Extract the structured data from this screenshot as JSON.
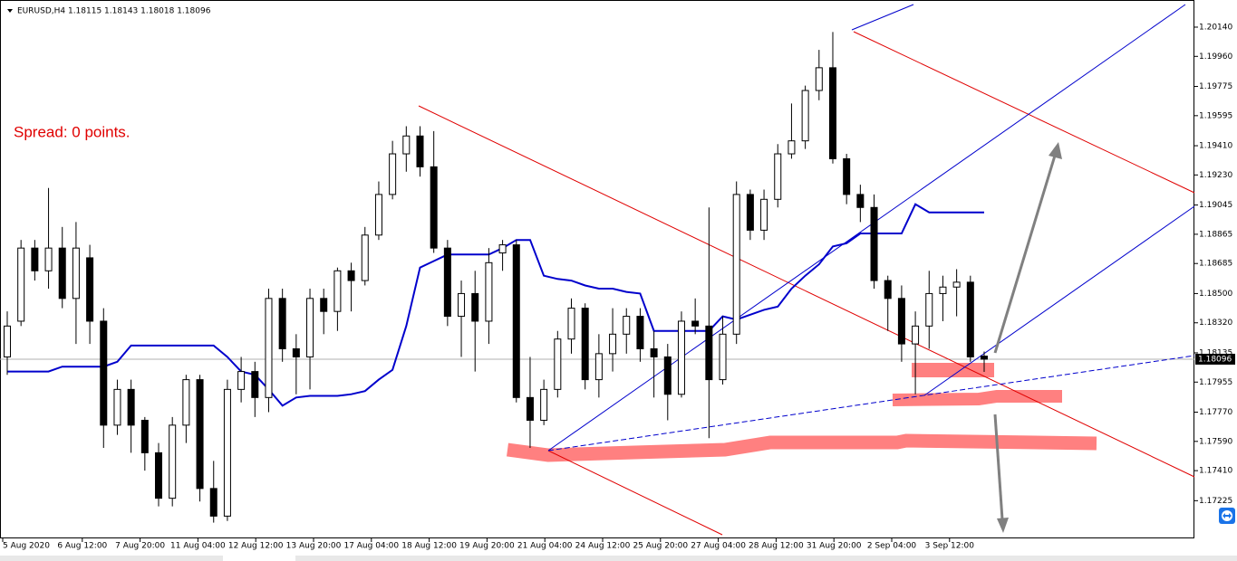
{
  "chart_data": {
    "type": "candlestick",
    "title": "EURUSD,H4  1.18115 1.18143 1.18018 1.18096",
    "annotation": "Spread: 0 points.",
    "ylim": [
      1.16993,
      1.20307
    ],
    "yticks": [
      {
        "value": 1.2014,
        "label": "1.20140"
      },
      {
        "value": 1.1996,
        "label": "1.19960"
      },
      1.19775,
      1.19595,
      {
        "value": 1.1941,
        "label": "1.19410"
      },
      {
        "value": 1.1923,
        "label": "1.19230"
      },
      1.19045,
      1.18865,
      1.18685,
      {
        "value": 1.185,
        "label": "1.18500"
      },
      {
        "value": 1.1832,
        "label": "1.18320"
      },
      1.18135,
      1.17955,
      {
        "value": 1.1777,
        "label": "1.17770"
      },
      {
        "value": 1.1759,
        "label": "1.17590"
      },
      {
        "value": 1.1741,
        "label": "1.17410"
      },
      1.17225
    ],
    "current_price": 1.18096,
    "x_labels": [
      "5 Aug 2020",
      "6 Aug 12:00",
      "7 Aug 20:00",
      "11 Aug 04:00",
      "12 Aug 12:00",
      "13 Aug 20:00",
      "17 Aug 04:00",
      "18 Aug 12:00",
      "19 Aug 20:00",
      "21 Aug 04:00",
      "24 Aug 12:00",
      "25 Aug 20:00",
      "27 Aug 04:00",
      "28 Aug 12:00",
      "31 Aug 20:00",
      "2 Sep 04:00",
      "3 Sep 12:00"
    ],
    "open": [
      1.1811,
      1.1833,
      1.1878,
      1.1864,
      1.1878,
      1.1847,
      1.1872,
      1.1833,
      1.1769,
      1.1791,
      1.1772,
      1.1752,
      1.1724,
      1.1769,
      1.1797,
      1.173,
      1.1713,
      1.1791,
      1.1802,
      1.1786,
      1.1847,
      1.1816,
      1.1811,
      1.1847,
      1.1839,
      1.1864,
      1.1858,
      1.1886,
      1.1911,
      1.1936,
      1.1947,
      1.1928,
      1.1878,
      1.1836,
      1.185,
      1.1833,
      1.1875,
      1.188,
      1.1786,
      1.1772,
      1.1791,
      1.1822,
      1.1841,
      1.1797,
      1.1813,
      1.1825,
      1.1836,
      1.1816,
      1.1811,
      1.1788,
      1.1833,
      1.183,
      1.1797,
      1.1825,
      1.1911,
      1.1889,
      1.1908,
      1.1936,
      1.1944,
      1.1975,
      1.1989,
      1.1933,
      1.1911,
      1.1903,
      1.1858,
      1.1847,
      1.1819,
      1.183,
      1.185,
      1.1854,
      1.1857,
      1.18115
    ],
    "high": [
      1.1839,
      1.1883,
      1.1883,
      1.1915,
      1.1891,
      1.1894,
      1.188,
      1.1841,
      1.1797,
      1.1797,
      1.1774,
      1.1758,
      1.1774,
      1.18,
      1.18,
      1.1747,
      1.1797,
      1.1811,
      1.1808,
      1.1853,
      1.1853,
      1.1825,
      1.1853,
      1.1853,
      1.1866,
      1.1869,
      1.1891,
      1.1919,
      1.1944,
      1.1953,
      1.1953,
      1.195,
      1.1883,
      1.1858,
      1.1864,
      1.1878,
      1.1883,
      1.1883,
      1.1811,
      1.1797,
      1.1827,
      1.1847,
      1.1844,
      1.1825,
      1.1841,
      1.1841,
      1.1841,
      1.1827,
      1.1819,
      1.1839,
      1.1847,
      1.1903,
      1.1836,
      1.1919,
      1.1914,
      1.1914,
      1.1942,
      1.1967,
      1.1978,
      1.2,
      1.2011,
      1.1936,
      1.1917,
      1.1911,
      1.1861,
      1.1855,
      1.1839,
      1.1864,
      1.1861,
      1.1865,
      1.1861,
      1.18143
    ],
    "low": [
      1.18,
      1.183,
      1.1858,
      1.1853,
      1.1841,
      1.1819,
      1.1819,
      1.1755,
      1.1763,
      1.1752,
      1.1741,
      1.1719,
      1.1719,
      1.1758,
      1.1722,
      1.1709,
      1.171,
      1.1783,
      1.1774,
      1.1777,
      1.1808,
      1.1788,
      1.1791,
      1.1825,
      1.1827,
      1.1839,
      1.1855,
      1.1883,
      1.1908,
      1.1925,
      1.1922,
      1.1875,
      1.183,
      1.1811,
      1.1802,
      1.1819,
      1.1864,
      1.1783,
      1.1755,
      1.1769,
      1.1786,
      1.1813,
      1.1791,
      1.1786,
      1.1802,
      1.1813,
      1.1808,
      1.1786,
      1.1772,
      1.1786,
      1.1825,
      1.1761,
      1.1794,
      1.1819,
      1.1883,
      1.1883,
      1.1903,
      1.1933,
      1.1939,
      1.1969,
      1.193,
      1.1905,
      1.1894,
      1.1853,
      1.1827,
      1.1808,
      1.1788,
      1.1816,
      1.1833,
      1.1836,
      1.1808,
      1.18018
    ],
    "close": [
      1.183,
      1.1878,
      1.1864,
      1.1878,
      1.1847,
      1.1878,
      1.1833,
      1.1769,
      1.1791,
      1.1769,
      1.1752,
      1.1724,
      1.1769,
      1.1797,
      1.173,
      1.1713,
      1.1791,
      1.1802,
      1.1786,
      1.1847,
      1.1816,
      1.1811,
      1.1847,
      1.1839,
      1.1864,
      1.1858,
      1.1886,
      1.1911,
      1.1936,
      1.1947,
      1.1928,
      1.1878,
      1.1836,
      1.185,
      1.1833,
      1.1869,
      1.188,
      1.1786,
      1.1772,
      1.1791,
      1.1822,
      1.1841,
      1.1797,
      1.1813,
      1.1825,
      1.1836,
      1.1816,
      1.1811,
      1.1788,
      1.1833,
      1.183,
      1.1797,
      1.1825,
      1.1911,
      1.1889,
      1.1908,
      1.1936,
      1.1944,
      1.1975,
      1.1989,
      1.1933,
      1.1911,
      1.1903,
      1.1858,
      1.1847,
      1.1819,
      1.183,
      1.185,
      1.1854,
      1.1857,
      1.1811,
      1.18096
    ],
    "indicator": {
      "color": "#0000cc",
      "values": [
        1.1802,
        1.1802,
        1.1802,
        1.1802,
        1.1805,
        1.1805,
        1.1805,
        1.1805,
        1.1808,
        1.1818,
        1.1818,
        1.1818,
        1.1818,
        1.1818,
        1.1818,
        1.1818,
        1.1811,
        1.1802,
        1.18,
        1.1791,
        1.1781,
        1.1786,
        1.1787,
        1.1787,
        1.1787,
        1.1788,
        1.179,
        1.1797,
        1.1803,
        1.183,
        1.1866,
        1.187,
        1.1874,
        1.1874,
        1.1874,
        1.1874,
        1.1878,
        1.1883,
        1.1883,
        1.1861,
        1.1859,
        1.1858,
        1.1855,
        1.1853,
        1.1853,
        1.1851,
        1.185,
        1.1827,
        1.1827,
        1.1827,
        1.1827,
        1.1827,
        1.1836,
        1.1834,
        1.1837,
        1.184,
        1.1842,
        1.1853,
        1.1861,
        1.1868,
        1.1879,
        1.1881,
        1.1887,
        1.1887,
        1.1887,
        1.1887,
        1.1905,
        1.19,
        1.19,
        1.19,
        1.19,
        1.19
      ]
    }
  }
}
